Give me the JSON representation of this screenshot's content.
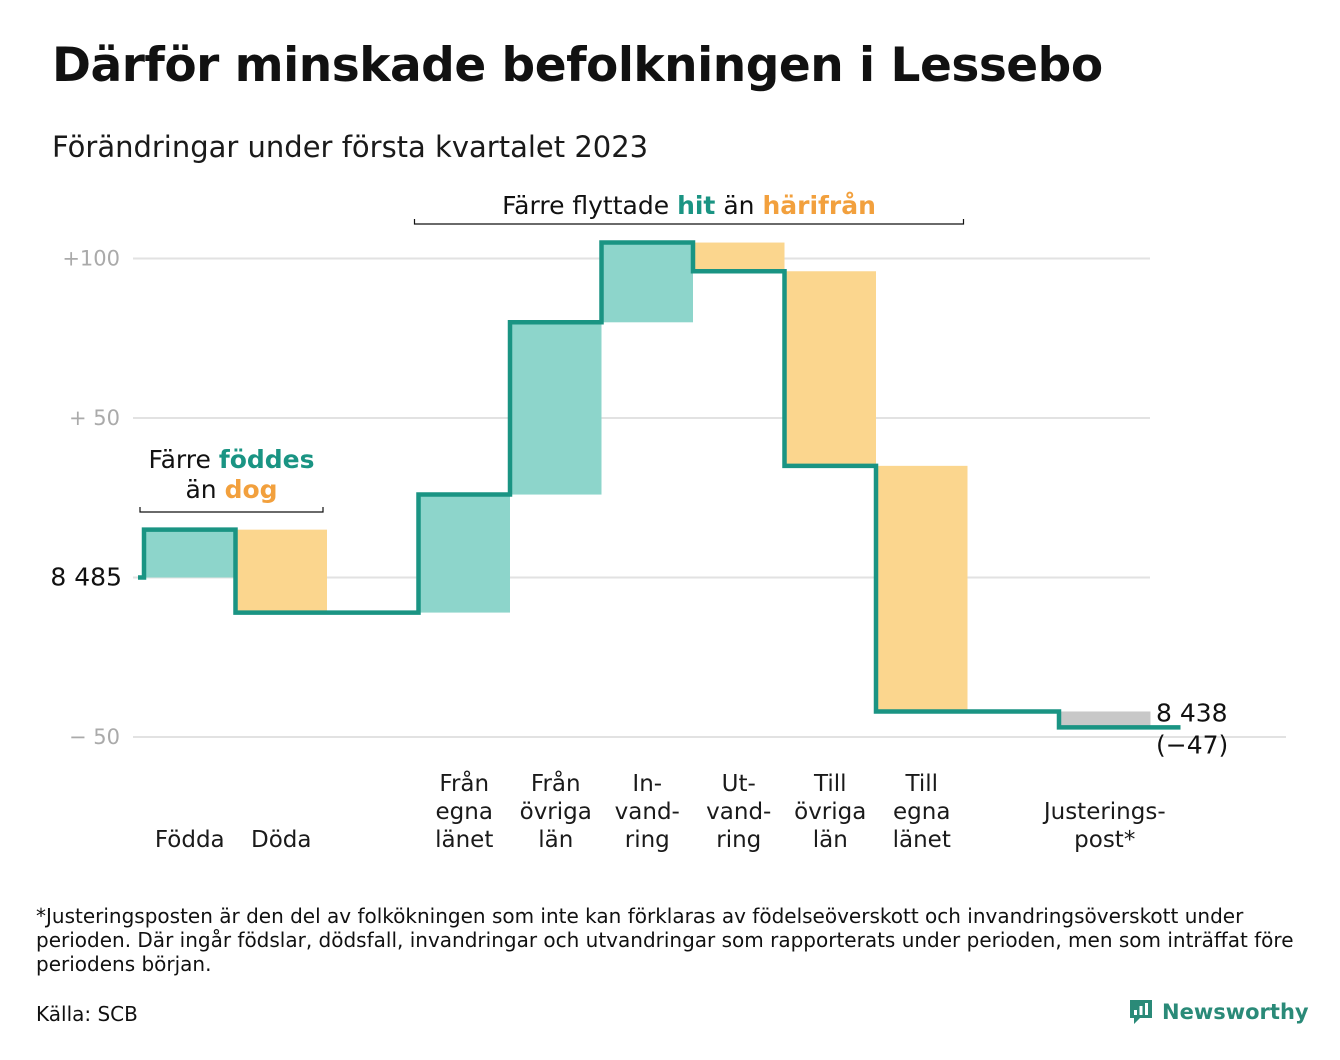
{
  "title": "Därför minskade befolkningen i Lessebo",
  "subtitle": "Förändringar under första kvartalet 2023",
  "footnote": "*Justeringsposten är den del av folkökningen som inte kan förklaras av födelseöverskott och invandringsöverskott under perioden. Där ingår födslar, dödsfall, invandringar och utvandringar som rapporterats under perioden, men som inträffat före periodens början.",
  "source": "Källa: SCB",
  "brand": {
    "name": "Newsworthy",
    "icon": "newsworthy-logo-icon"
  },
  "colors": {
    "line": "#1a9483",
    "increase": "#8dd5cb",
    "decrease": "#fbd68e",
    "adjustment": "#c8c8c8",
    "grid": "#e2e2e2",
    "teal_text": "#1a9483",
    "orange_text": "#f2a03d"
  },
  "chart_data": {
    "type": "waterfall",
    "title": "Därför minskade befolkningen i Lessebo",
    "subtitle": "Förändringar under första kvartalet 2023",
    "start_value": 8485,
    "start_label": "8 485",
    "end_value": 8438,
    "end_label": "8 438",
    "end_change_label": "(−47)",
    "y_relative_range": [
      -50,
      105
    ],
    "yticks": [
      {
        "value": 100,
        "label": "+100"
      },
      {
        "value": 50,
        "label": "+ 50"
      },
      {
        "value": -50,
        "label": "− 50"
      }
    ],
    "grid": true,
    "categories": [
      {
        "lines": [
          "Födda"
        ],
        "change": 15,
        "kind": "increase"
      },
      {
        "lines": [
          "Döda"
        ],
        "change": -26,
        "kind": "decrease"
      },
      {
        "lines": [
          ""
        ],
        "change": 0,
        "kind": "spacer"
      },
      {
        "lines": [
          "Från",
          "egna",
          "länet"
        ],
        "change": 37,
        "kind": "increase"
      },
      {
        "lines": [
          "Från",
          "övriga",
          "län"
        ],
        "change": 54,
        "kind": "increase"
      },
      {
        "lines": [
          "In-",
          "vand-",
          "ring"
        ],
        "change": 25,
        "kind": "increase"
      },
      {
        "lines": [
          "Ut-",
          "vand-",
          "ring"
        ],
        "change": -9,
        "kind": "decrease"
      },
      {
        "lines": [
          "Till",
          "övriga",
          "län"
        ],
        "change": -61,
        "kind": "decrease"
      },
      {
        "lines": [
          "Till",
          "egna",
          "länet"
        ],
        "change": -77,
        "kind": "decrease"
      },
      {
        "lines": [
          ""
        ],
        "change": 0,
        "kind": "spacer"
      },
      {
        "lines": [
          "Justerings-",
          "post*"
        ],
        "change": -5,
        "kind": "adjustment"
      }
    ],
    "annotations": [
      {
        "name": "births-deaths-annotation",
        "parts": [
          {
            "text": "Färre ",
            "style": "plain"
          },
          {
            "text": "föddes",
            "style": "teal"
          }
        ],
        "parts_line2": [
          {
            "text": "än ",
            "style": "plain"
          },
          {
            "text": "dog",
            "style": "orange"
          }
        ],
        "spans_categories": [
          0,
          1
        ]
      },
      {
        "name": "migration-annotation",
        "parts": [
          {
            "text": "Färre flyttade ",
            "style": "plain"
          },
          {
            "text": "hit",
            "style": "teal"
          },
          {
            "text": " än ",
            "style": "plain"
          },
          {
            "text": "härifrån",
            "style": "orange"
          }
        ],
        "spans_categories": [
          3,
          8
        ]
      }
    ]
  }
}
